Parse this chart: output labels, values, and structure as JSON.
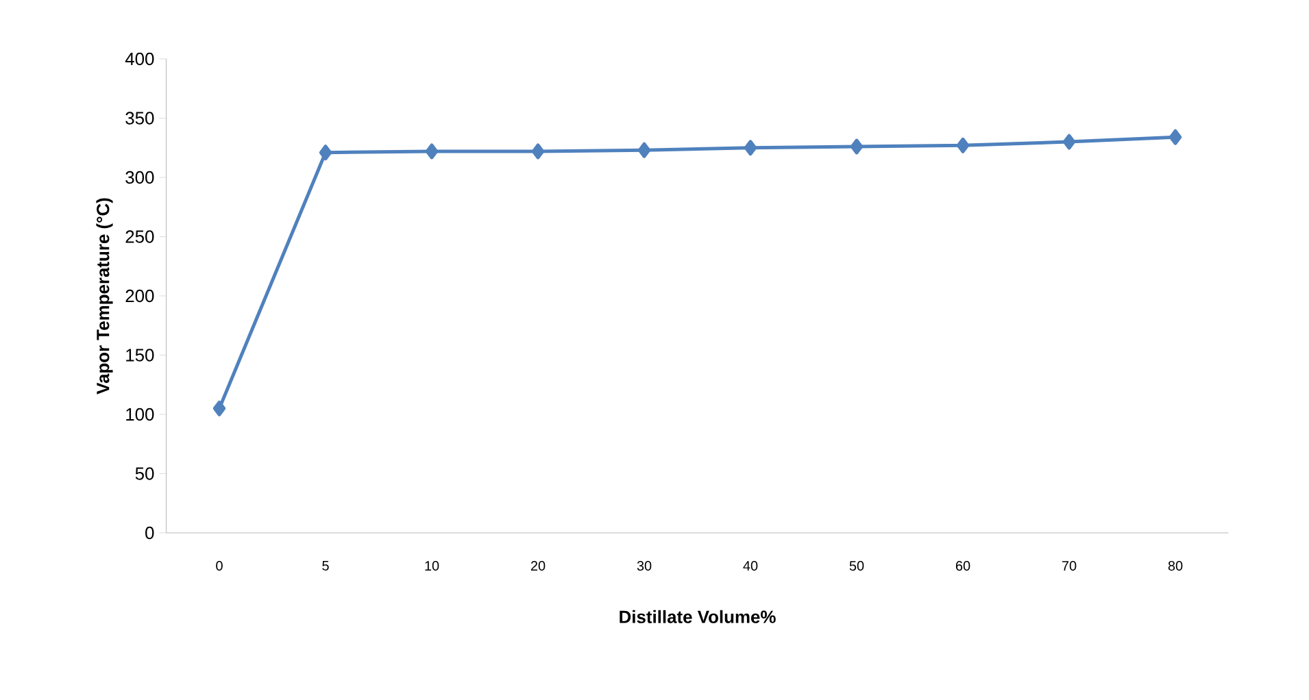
{
  "chart_data": {
    "type": "line",
    "xlabel": "Distillate  Volume%",
    "ylabel": "Vapor Temperature (°C)",
    "categories": [
      "0",
      "5",
      "10",
      "20",
      "30",
      "40",
      "50",
      "60",
      "70",
      "80"
    ],
    "series": [
      {
        "color": "#4f81bd",
        "values": [
          105,
          321,
          322,
          322,
          323,
          325,
          326,
          327,
          330,
          334
        ]
      }
    ],
    "ylim": [
      0,
      400
    ],
    "yticks": [
      0,
      50,
      100,
      150,
      200,
      250,
      300,
      350,
      400
    ],
    "marker": "diamond",
    "line_style": "solid"
  }
}
